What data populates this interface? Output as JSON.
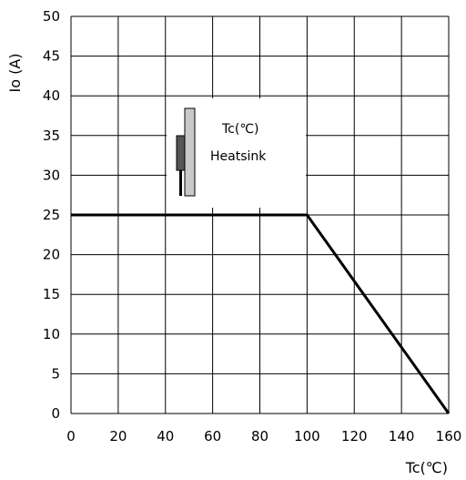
{
  "chart_data": {
    "type": "line",
    "xlabel": "Tc(℃)",
    "ylabel": "Io (A)",
    "xlim": [
      0,
      160
    ],
    "ylim": [
      0,
      50
    ],
    "x_ticks": [
      0,
      20,
      40,
      60,
      80,
      100,
      120,
      140,
      160
    ],
    "y_ticks": [
      0,
      5,
      10,
      15,
      20,
      25,
      30,
      35,
      40,
      45,
      50
    ],
    "grid": true,
    "series": [
      {
        "x": [
          0,
          100,
          160
        ],
        "y": [
          25,
          25,
          0
        ]
      }
    ],
    "annotations": {
      "inset_tc_label": "Tc(℃)",
      "inset_heatsink_label": "Heatsink"
    },
    "colors": {
      "line": "#000000",
      "grid": "#000000",
      "inset_dark": "#555555",
      "inset_light": "#c8c8c8"
    }
  }
}
